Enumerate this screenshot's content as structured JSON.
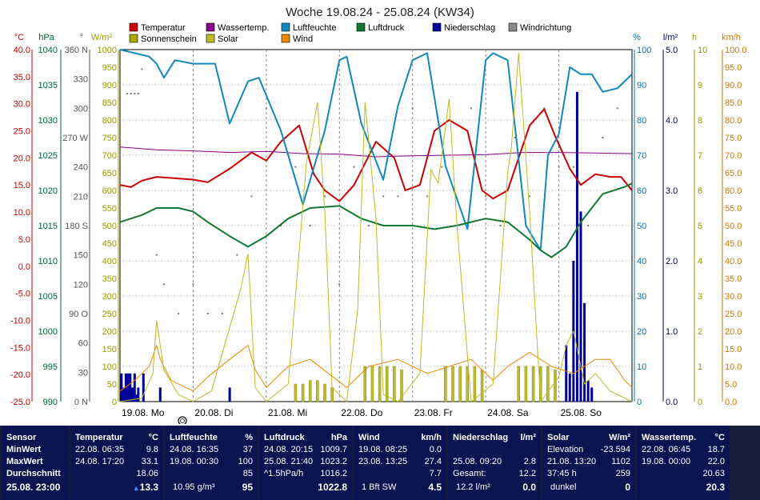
{
  "chart_data": {
    "type": "line",
    "title": "Woche 19.08.24 - 25.08.24 (KW34)",
    "x_labels": [
      "19.08. Mo",
      "20.08. Di",
      "21.08. Mi",
      "22.08. Do",
      "23.08. Fr",
      "24.08. Sa",
      "25.08. So"
    ],
    "axes": {
      "temp": {
        "unit": "°C",
        "ticks": [
          "40.0",
          "35.0",
          "30.0",
          "25.0",
          "20.0",
          "15.0",
          "10.0",
          "5.0",
          "0.0",
          "-5.0",
          "-10.0",
          "-15.0",
          "-20.0",
          "-25.0"
        ],
        "color": "#cc0000"
      },
      "press": {
        "unit": "hPa",
        "ticks": [
          "1040",
          "1035",
          "1030",
          "1025",
          "1020",
          "1015",
          "1010",
          "1005",
          "1000",
          "995",
          "990"
        ],
        "color": "#006633"
      },
      "dir": {
        "unit": "°",
        "ticks": [
          "360 N",
          "330",
          "300",
          "270 W",
          "240",
          "210",
          "180 S",
          "150",
          "120",
          "90 O",
          "60",
          "30",
          "0 N"
        ],
        "color": "#555555"
      },
      "solar": {
        "unit": "W/m²",
        "ticks": [
          "1000",
          "950",
          "900",
          "850",
          "800",
          "750",
          "700",
          "650",
          "600",
          "550",
          "500",
          "450",
          "400",
          "350",
          "300",
          "250",
          "200",
          "150",
          "100",
          "50",
          "0"
        ],
        "color": "#999900"
      },
      "hum": {
        "unit": "%",
        "ticks": [
          "100",
          "90",
          "80",
          "70",
          "60",
          "50",
          "40",
          "30",
          "20",
          "10",
          "0"
        ],
        "color": "#0077aa"
      },
      "rain": {
        "unit": "l/m²",
        "ticks": [
          "5.0",
          "4.0",
          "3.0",
          "2.0",
          "1.0",
          "0.0"
        ],
        "color": "#000066"
      },
      "sun": {
        "unit": "h",
        "ticks": [
          "10",
          "9",
          "8",
          "7",
          "6",
          "5",
          "4",
          "3",
          "2",
          "1",
          "0"
        ],
        "color": "#999900"
      },
      "wind": {
        "unit": "km/h",
        "ticks": [
          "100.0",
          "95.0",
          "90.0",
          "85.0",
          "80.0",
          "75.0",
          "70.0",
          "65.0",
          "60.0",
          "55.0",
          "50.0",
          "45.0",
          "40.0",
          "35.0",
          "30.0",
          "25.0",
          "20.0",
          "15.0",
          "10.0",
          "5.0",
          "0.0"
        ],
        "color": "#cc7700"
      }
    },
    "legend": [
      {
        "name": "Temperatur",
        "color": "#cc0000"
      },
      {
        "name": "Wassertemp.",
        "color": "#880088"
      },
      {
        "name": "Luftfeuchte",
        "color": "#1188bb"
      },
      {
        "name": "Luftdruck",
        "color": "#117733"
      },
      {
        "name": "Niederschlag",
        "color": "#000099"
      },
      {
        "name": "Windrichtung",
        "color": "#888888"
      },
      {
        "name": "Sonnenschein",
        "color": "#aaaa00"
      },
      {
        "name": "Solar",
        "color": "#bbbb22"
      },
      {
        "name": "Wind",
        "color": "#ee8800"
      }
    ],
    "series": [
      {
        "name": "Temperatur",
        "axis": "temp",
        "x": [
          0,
          0.15,
          0.3,
          0.5,
          0.8,
          1,
          1.2,
          1.5,
          1.8,
          2,
          2.2,
          2.45,
          2.65,
          2.8,
          3,
          3.2,
          3.5,
          3.75,
          3.9,
          4.1,
          4.3,
          4.5,
          4.75,
          4.95,
          5.1,
          5.3,
          5.6,
          5.8,
          5.95,
          6.15,
          6.3,
          6.5,
          6.7,
          6.85,
          7
        ],
        "y": [
          15.0,
          14.6,
          15.8,
          16.5,
          16.2,
          16.0,
          15.5,
          18.0,
          21.0,
          19.5,
          23.0,
          26.0,
          17.0,
          14.0,
          12.0,
          15.0,
          23.0,
          20.0,
          14.0,
          15.0,
          25.0,
          27.0,
          25.0,
          14.0,
          12.5,
          14.0,
          26.0,
          29.0,
          24.0,
          18.0,
          15.0,
          17.0,
          16.5,
          16.5,
          14.0
        ]
      },
      {
        "name": "Wassertemp.",
        "axis": "temp",
        "x": [
          0,
          0.5,
          1,
          1.5,
          2,
          2.5,
          3,
          3.5,
          4,
          4.5,
          5,
          5.5,
          6,
          6.5,
          7
        ],
        "y": [
          22.0,
          21.5,
          21.3,
          21.0,
          21.2,
          20.8,
          20.7,
          20.2,
          20.4,
          20.5,
          20.6,
          21.0,
          21.0,
          20.9,
          20.8
        ]
      },
      {
        "name": "Luftfeuchte",
        "axis": "hum",
        "x": [
          0,
          0.2,
          0.4,
          0.5,
          0.6,
          0.75,
          1.0,
          1.3,
          1.5,
          1.75,
          1.9,
          2.2,
          2.5,
          2.8,
          3.0,
          3.1,
          3.3,
          3.6,
          3.8,
          4.0,
          4.2,
          4.45,
          4.75,
          5.0,
          5.1,
          5.3,
          5.55,
          5.75,
          5.85,
          6.0,
          6.15,
          6.3,
          6.45,
          6.6,
          6.8,
          7
        ],
        "y": [
          100,
          99,
          98,
          96,
          92,
          97,
          96,
          96,
          79,
          91,
          92,
          77,
          56,
          77,
          97,
          98,
          79,
          63,
          84,
          97,
          99,
          67,
          49,
          97,
          99,
          97,
          50,
          43,
          70,
          76,
          95,
          93,
          93,
          88,
          89,
          93
        ]
      },
      {
        "name": "Luftdruck",
        "axis": "press",
        "x": [
          0,
          0.3,
          0.5,
          0.8,
          1.0,
          1.2,
          1.5,
          1.75,
          2.0,
          2.3,
          2.6,
          3.0,
          3.3,
          3.6,
          4.0,
          4.3,
          4.6,
          5.0,
          5.3,
          5.6,
          5.75,
          5.9,
          6.1,
          6.3,
          6.6,
          6.9,
          7
        ],
        "y": [
          1015.5,
          1016.5,
          1017.5,
          1017.5,
          1017.0,
          1015.5,
          1013.5,
          1012.0,
          1013.5,
          1016.0,
          1017.5,
          1017.8,
          1016.0,
          1015.0,
          1015.0,
          1014.5,
          1015.0,
          1016.0,
          1015.5,
          1013.0,
          1011.5,
          1010.5,
          1012.0,
          1015.5,
          1019.5,
          1020.5,
          1021.0
        ]
      },
      {
        "name": "Wind",
        "axis": "wind",
        "x": [
          0,
          0.2,
          0.4,
          0.5,
          0.55,
          0.7,
          1.0,
          1.2,
          1.5,
          1.75,
          1.85,
          2.0,
          2.3,
          2.6,
          2.85,
          3.1,
          3.4,
          3.8,
          4.2,
          4.5,
          4.8,
          5.1,
          5.3,
          5.6,
          5.9,
          6.2,
          6.5,
          6.7,
          6.9,
          7
        ],
        "y": [
          3,
          6,
          10,
          16,
          12,
          6,
          3,
          7,
          12,
          16,
          9,
          4,
          10,
          12,
          8,
          4,
          10,
          12,
          8,
          10,
          12,
          6,
          10,
          14,
          10,
          8,
          12,
          12,
          6,
          4
        ]
      },
      {
        "name": "Solar",
        "axis": "solar",
        "x": [
          0,
          0.3,
          0.45,
          0.5,
          0.6,
          0.8,
          1.0,
          1.25,
          1.65,
          1.75,
          1.85,
          2.0,
          2.3,
          2.55,
          2.7,
          2.8,
          2.9,
          3.1,
          3.25,
          3.35,
          3.5,
          3.6,
          3.8,
          4.1,
          4.25,
          4.35,
          4.5,
          4.6,
          4.8,
          5.1,
          5.3,
          5.35,
          5.45,
          5.6,
          5.75,
          6.0,
          6.1,
          6.2,
          6.35,
          6.5,
          6.7,
          7
        ],
        "y": [
          0,
          10,
          80,
          230,
          90,
          20,
          0,
          30,
          320,
          420,
          40,
          0,
          50,
          680,
          850,
          540,
          40,
          0,
          260,
          850,
          520,
          20,
          0,
          80,
          660,
          620,
          860,
          520,
          0,
          50,
          650,
          720,
          990,
          540,
          0,
          70,
          160,
          200,
          50,
          80,
          30,
          0
        ]
      }
    ],
    "rain_bars": {
      "axis": "rain",
      "x": [
        0.02,
        0.05,
        0.08,
        0.11,
        0.14,
        0.17,
        0.2,
        0.23,
        0.25,
        0.32,
        0.55,
        1.5,
        6.1,
        6.15,
        6.2,
        6.25,
        6.3,
        6.35,
        6.4,
        6.45
      ],
      "y": [
        0.4,
        0.2,
        0.4,
        0.4,
        0.4,
        0.2,
        0.4,
        0.1,
        0.2,
        0.4,
        0.2,
        0.2,
        0.8,
        0.4,
        2.0,
        4.4,
        2.7,
        1.4,
        0.3,
        0.2
      ]
    },
    "sunshine_bars": {
      "axis": "sun",
      "x": [
        2.4,
        2.5,
        2.6,
        2.7,
        2.8,
        2.9,
        3.35,
        3.45,
        3.55,
        3.65,
        3.75,
        3.85,
        4.45,
        4.55,
        4.65,
        4.75,
        4.85,
        4.95,
        5.45,
        5.55,
        5.65,
        5.75,
        5.85,
        5.95
      ],
      "y": [
        0.5,
        0.5,
        0.6,
        0.6,
        0.5,
        0.4,
        1.0,
        1.0,
        1.0,
        1.0,
        1.0,
        0.9,
        1.0,
        1.0,
        1.0,
        1.0,
        1.0,
        0.9,
        1.0,
        1.0,
        1.0,
        1.0,
        1.0,
        0.9
      ]
    },
    "wind_dir": {
      "axis": "dir",
      "x": [
        0.1,
        0.15,
        0.2,
        0.25,
        0.3,
        0.5,
        0.6,
        0.8,
        1.0,
        1.2,
        1.4,
        1.6,
        1.8,
        2.0,
        2.2,
        2.4,
        2.6,
        2.8,
        3.0,
        3.2,
        3.4,
        3.6,
        3.8,
        4.0,
        4.2,
        4.4,
        4.6,
        4.8,
        5.0,
        5.2,
        5.4,
        5.6,
        5.8,
        6.0,
        6.2,
        6.4,
        6.6,
        6.8
      ],
      "y": [
        315,
        315,
        315,
        315,
        340,
        150,
        120,
        90,
        120,
        90,
        90,
        150,
        210,
        300,
        180,
        240,
        180,
        210,
        120,
        240,
        180,
        210,
        210,
        300,
        210,
        240,
        180,
        300,
        210,
        180,
        270,
        210,
        300,
        240,
        240,
        180,
        270,
        300
      ]
    },
    "ranges": {
      "temp": [
        -25,
        40
      ],
      "press": [
        990,
        1040
      ],
      "dir": [
        0,
        360
      ],
      "solar": [
        0,
        1000
      ],
      "hum": [
        0,
        100
      ],
      "rain": [
        0,
        5
      ],
      "sun": [
        0,
        10
      ],
      "wind": [
        0,
        100
      ]
    },
    "grid": true
  },
  "panel": {
    "sensor": {
      "header": "Sensor",
      "min": "MinWert",
      "max": "MaxWert",
      "avg": "Durchschnitt",
      "now": "25.08. 23:00"
    },
    "temperatur": {
      "label": "Temperatur",
      "unit": "°C",
      "min_time": "22.08.  06:35",
      "min_val": "9.8",
      "max_time": "24.08.  17:20",
      "max_val": "33.1",
      "avg": "18.06",
      "now_arrow": "▲",
      "now": "13.3"
    },
    "luftfeuchte": {
      "label": "Luftfeuchte",
      "unit": "%",
      "min_time": "24.08.  16:35",
      "min_val": "37",
      "max_time": "19.08.  00:30",
      "max_val": "100",
      "avg": "85",
      "now_extra": "10.95 g/m³",
      "now": "95"
    },
    "luftdruck": {
      "label": "Luftdruck",
      "unit": "hPa",
      "min_time": "24.08.  20:15",
      "min_val": "1009.7",
      "max_time": "25.08.  21:40",
      "max_val": "1023.2",
      "avg_label": "^1.5hPa/h",
      "avg": "1016.2",
      "now": "1022.8"
    },
    "wind": {
      "label": "Wind",
      "unit": "km/h",
      "min_time": "19.08.  08:25",
      "min_val": "0.0",
      "max_time": "23.08.  13:25",
      "max_val": "27.4",
      "avg": "7.7",
      "now_extra": "1 Bft SW",
      "now": "4.5"
    },
    "niederschlag": {
      "label": "Niederschlag",
      "unit": "l/m²",
      "max_time": "25.08.  09:20",
      "max_val": "2.8",
      "avg_label": "Gesamt:",
      "avg": "12.2",
      "now_extra": "12.2 l/m²",
      "now": "0.0"
    },
    "solar": {
      "label": "Solar",
      "unit": "W/m²",
      "min_label": "Elevation",
      "min_val": "-23.594",
      "max_time": "21.08.  13:20",
      "max_val": "1102",
      "avg_label": "37:45 h",
      "avg": "259",
      "now_extra": "dunkel",
      "now": "0"
    },
    "wassertemp": {
      "label": "Wassertemp.",
      "unit": "°C",
      "min_time": "22.08.  06:45",
      "min_val": "18.7",
      "max_time": "19.08.  00:00",
      "max_val": "22.0",
      "avg": "20.63",
      "now": "20.3"
    }
  }
}
